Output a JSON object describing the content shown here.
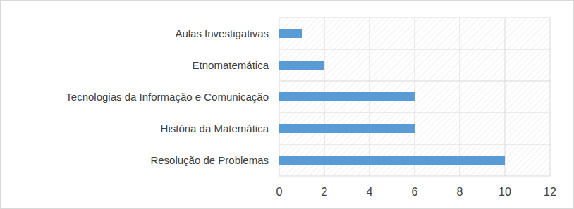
{
  "chart_data": {
    "type": "bar",
    "orientation": "horizontal",
    "categories": [
      "Aulas Investigativas",
      "Etnomatemática",
      "Tecnologias da Informação e Comunicação",
      "História da Matemática",
      "Resolução de Problemas"
    ],
    "values": [
      1,
      2,
      6,
      6,
      10
    ],
    "color": "#5b9bd5",
    "xlim": [
      0,
      12
    ],
    "xticks": [
      0,
      2,
      4,
      6,
      8,
      10,
      12
    ],
    "grid": true
  }
}
